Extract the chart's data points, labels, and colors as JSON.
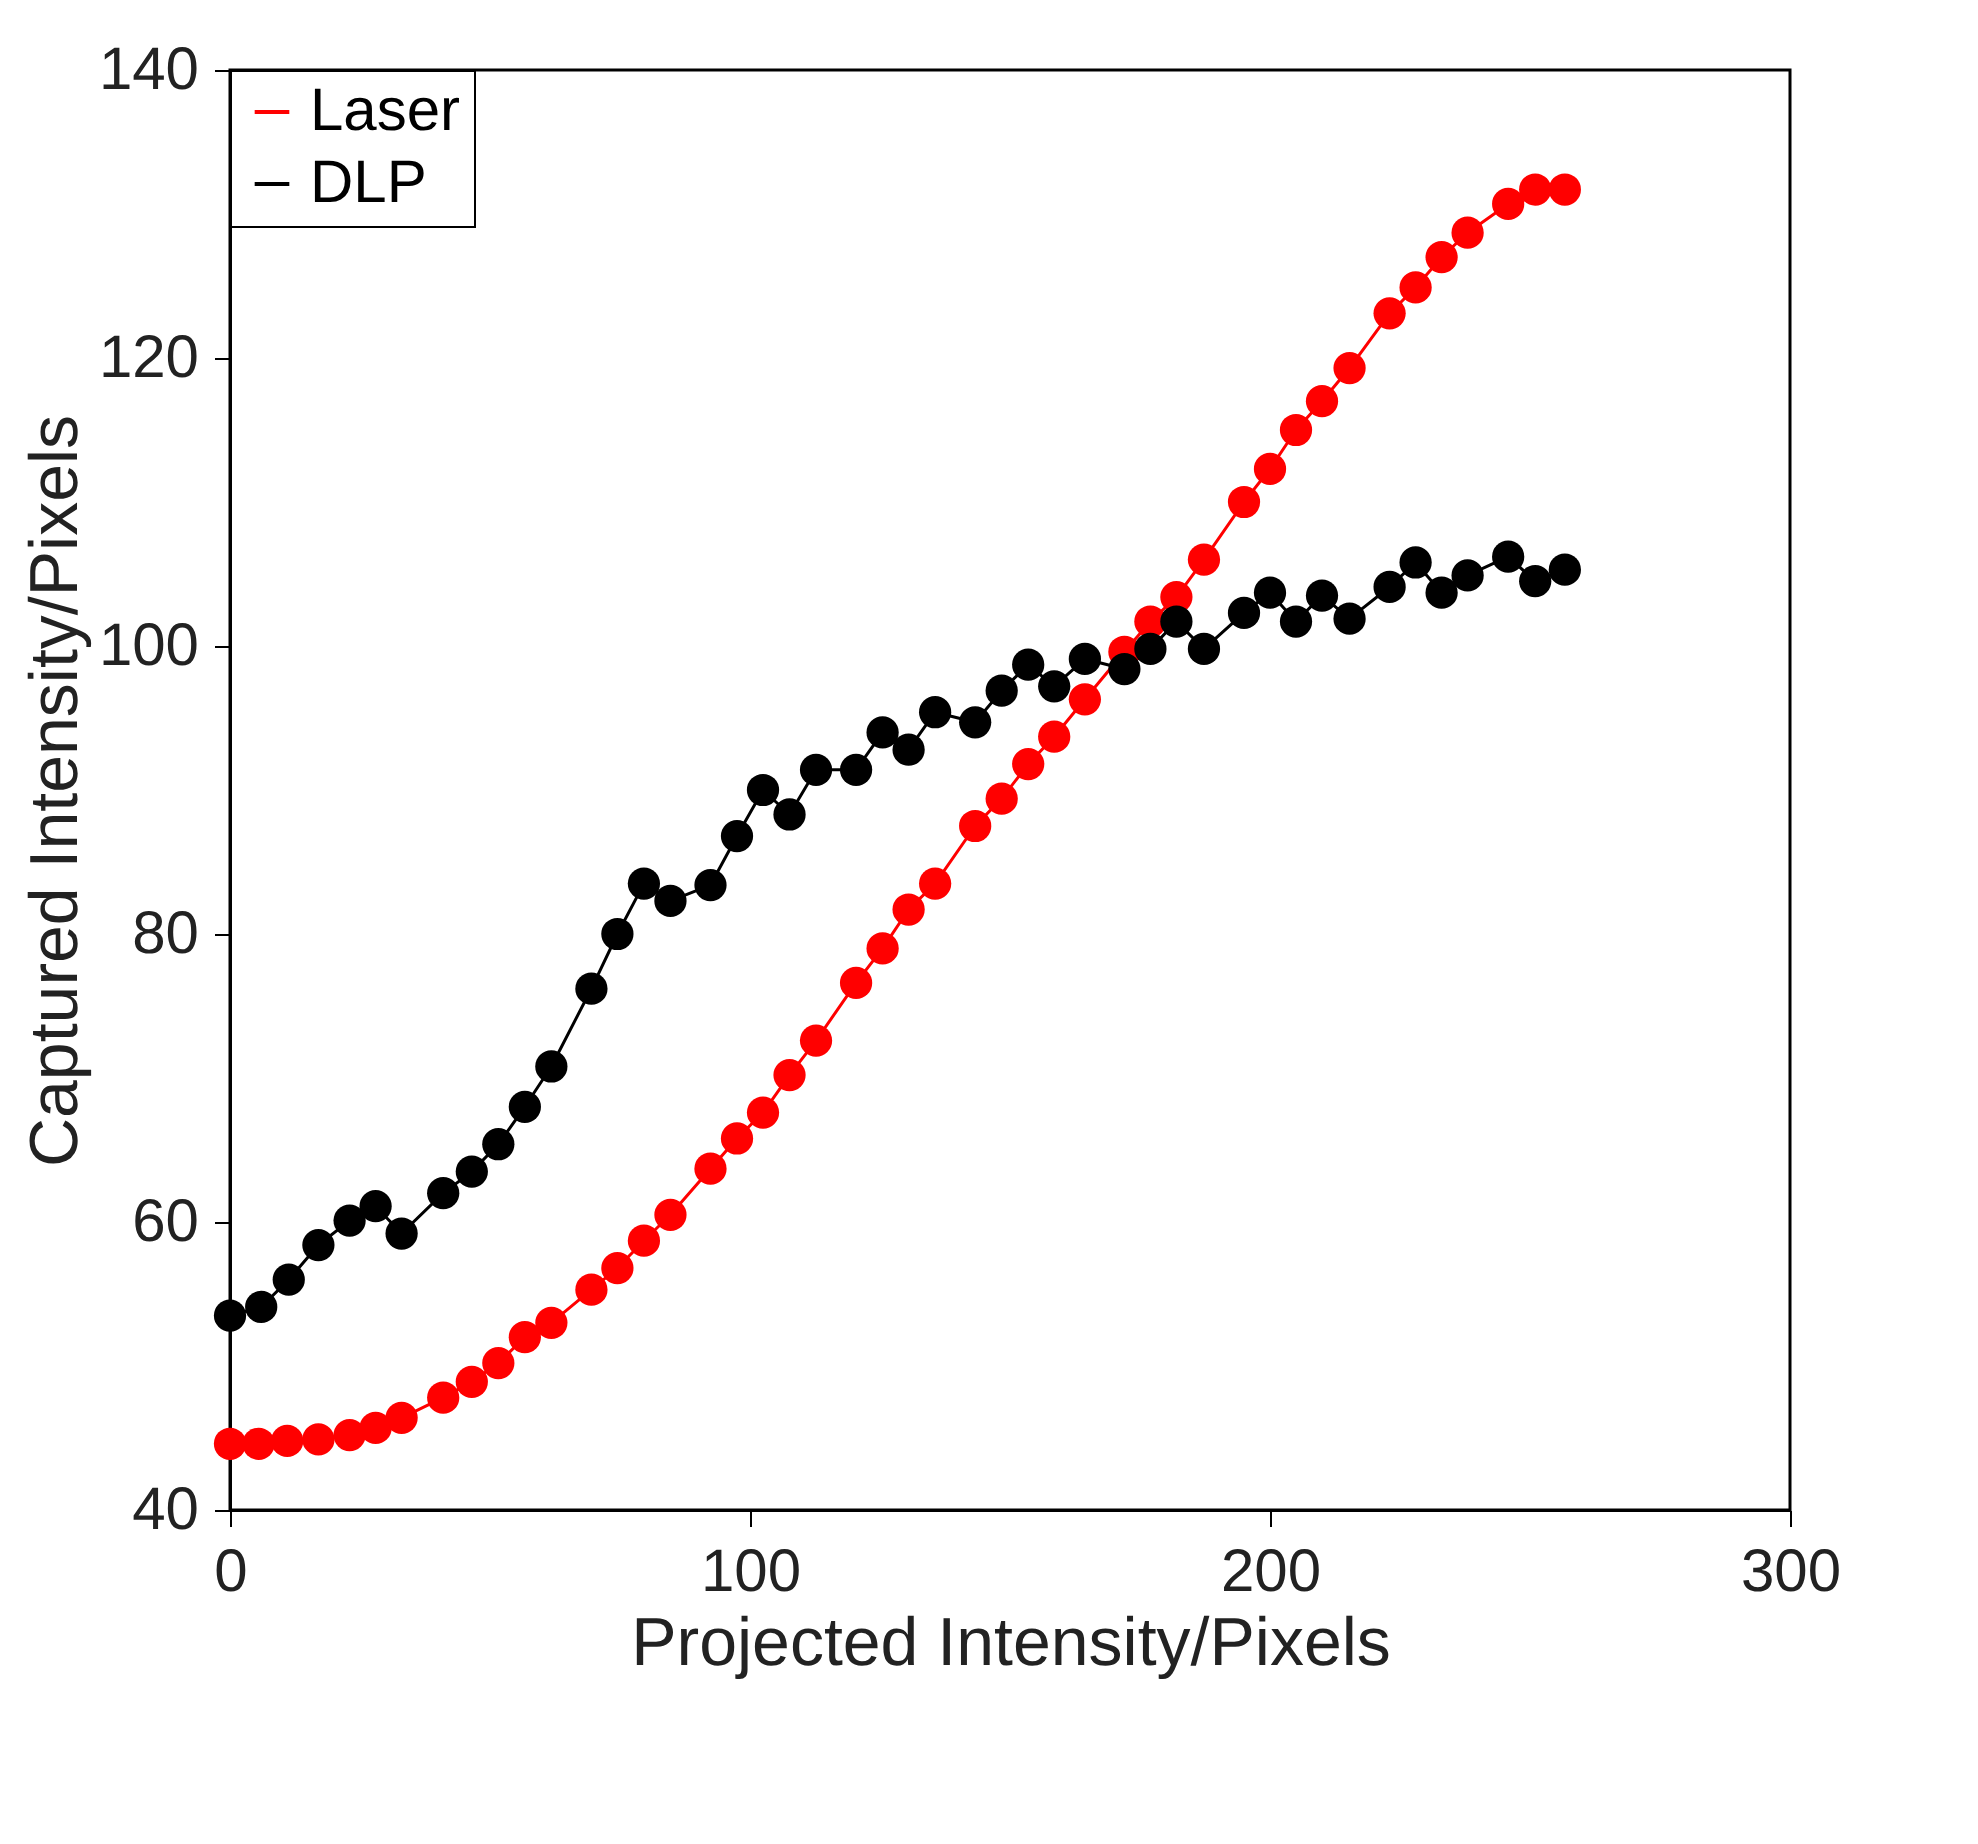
{
  "chart_data": {
    "type": "line",
    "xlabel": "Projected Intensity/Pixels",
    "ylabel": "Captured Intensity/Pixels",
    "xlim": [
      0,
      300
    ],
    "xticks": [
      0,
      100,
      200,
      300
    ],
    "ylim": [
      40,
      140
    ],
    "yticks": [
      40,
      60,
      80,
      100,
      120,
      140
    ],
    "grid": false,
    "legend": "top left",
    "marker": "circle",
    "line_style": "solid",
    "series": [
      {
        "name": "Laser",
        "color": "#ff0000",
        "x": [
          0,
          5.5,
          11,
          17,
          23,
          28,
          33,
          41,
          46.5,
          51.6,
          56.7,
          61.8,
          69.5,
          74.5,
          79.6,
          84.7,
          92.4,
          97.5,
          102.5,
          107.6,
          112.7,
          120.4,
          125.5,
          130.5,
          135.6,
          143.3,
          148.4,
          153.5,
          158.5,
          164.4,
          172,
          177,
          182,
          187.3,
          195,
          200,
          205,
          210,
          215.3,
          223,
          228,
          233,
          238,
          245.8,
          251,
          256.7
        ],
        "values": [
          44.6,
          44.6,
          44.8,
          44.9,
          45.2,
          45.7,
          46.4,
          47.8,
          48.9,
          50.2,
          52.0,
          53.0,
          55.3,
          56.8,
          58.7,
          60.5,
          63.7,
          65.8,
          67.6,
          70.2,
          72.6,
          76.6,
          79.0,
          81.7,
          83.5,
          87.5,
          89.4,
          91.8,
          93.7,
          96.3,
          99.6,
          101.7,
          103.4,
          106,
          110,
          112.3,
          115,
          117,
          119.3,
          123.1,
          124.9,
          127,
          128.7,
          130.7,
          131.7,
          131.7
        ]
      },
      {
        "name": "DLP",
        "color": "#000000",
        "x": [
          0,
          6,
          11.3,
          17,
          23,
          28,
          33,
          41,
          46.5,
          51.6,
          56.7,
          61.8,
          69.5,
          74.5,
          79.6,
          84.7,
          92.4,
          97.5,
          102.5,
          107.6,
          112.7,
          120.4,
          125.5,
          130.5,
          135.6,
          143.3,
          148.4,
          153.5,
          158.5,
          164.4,
          172,
          177,
          182,
          187.3,
          195,
          200,
          205,
          210,
          215.3,
          223,
          228,
          233,
          238,
          245.8,
          251,
          256.7
        ],
        "values": [
          53.5,
          54.1,
          56,
          58.4,
          60.1,
          61.1,
          59.2,
          62.0,
          63.5,
          65.4,
          68,
          70.8,
          76.2,
          80,
          83.5,
          82.3,
          83.4,
          86.8,
          90,
          88.3,
          91.4,
          91.4,
          94,
          92.8,
          95.4,
          94.7,
          96.9,
          98.7,
          97.2,
          99.1,
          98.4,
          99.8,
          101.7,
          99.8,
          102.3,
          103.7,
          101.7,
          103.5,
          101.9,
          104.1,
          105.8,
          103.7,
          104.9,
          106.2,
          104.5,
          105.3
        ]
      }
    ]
  }
}
